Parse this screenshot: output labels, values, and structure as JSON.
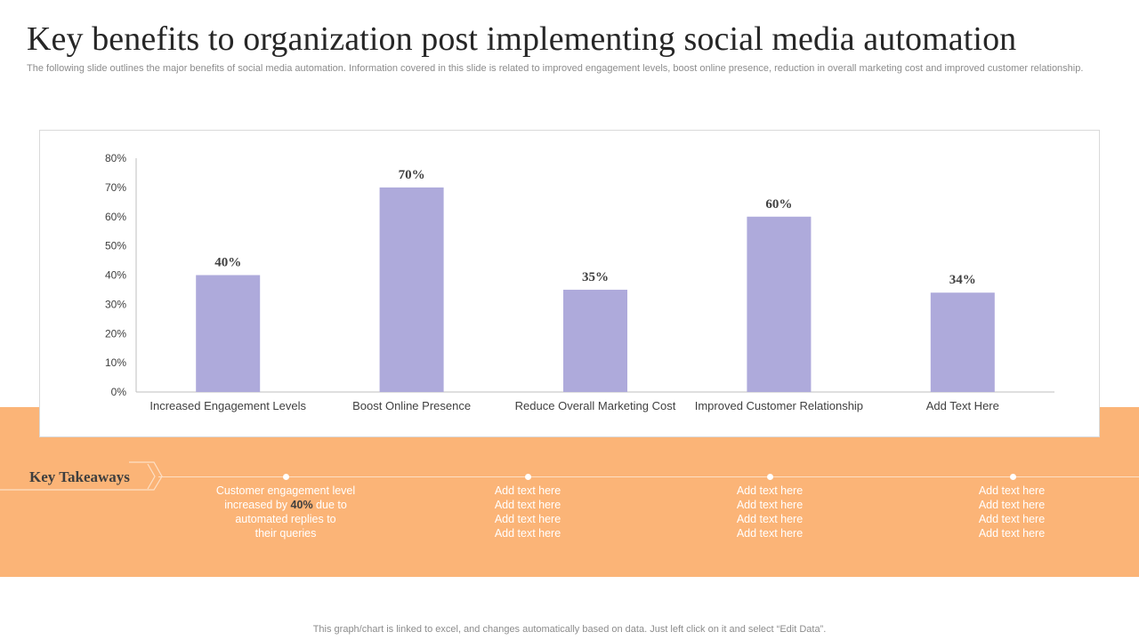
{
  "title": "Key benefits to organization post implementing social media automation",
  "subtitle": "The following slide outlines the major benefits of social media automation. Information covered in this slide is related to improved engagement levels, boost online presence, reduction in overall marketing cost and improved customer relationship.",
  "colors": {
    "bar": "#aeaadb",
    "band": "#fbb477",
    "axis": "#bfbfbf"
  },
  "chart_data": {
    "type": "bar",
    "categories": [
      "Increased Engagement Levels",
      "Boost Online Presence",
      "Reduce Overall Marketing Cost",
      "Improved Customer Relationship",
      "Add Text Here"
    ],
    "values": [
      40,
      70,
      35,
      60,
      34
    ],
    "data_labels": [
      "40%",
      "70%",
      "35%",
      "60%",
      "34%"
    ],
    "y_ticks": [
      "0%",
      "10%",
      "20%",
      "30%",
      "40%",
      "50%",
      "60%",
      "70%",
      "80%"
    ],
    "ylim": [
      0,
      80
    ],
    "grid": false,
    "legend": "none"
  },
  "takeaways": {
    "label": "Key Takeaways",
    "first": {
      "line1": "Customer engagement level",
      "line2_pre": "increased by ",
      "line2_bold": "40%",
      "line2_post": " due to",
      "line3": "automated replies to",
      "line4": "their queries"
    },
    "columns": [
      [
        "Add text here",
        "Add text here",
        "Add text here",
        "Add text here"
      ],
      [
        "Add text here",
        "Add text here",
        "Add text here",
        "Add text here"
      ],
      [
        "Add text here",
        "Add text here",
        "Add text here",
        "Add text here"
      ]
    ]
  },
  "footer": "This graph/chart is linked to excel,  and changes automatically based on data. Just left click on it and select “Edit Data”."
}
